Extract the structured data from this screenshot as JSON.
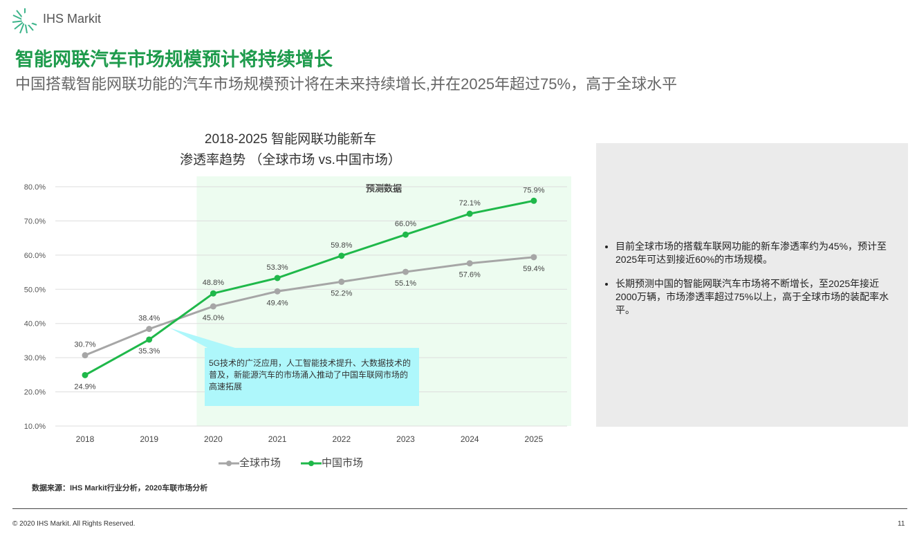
{
  "header": {
    "logo_text": "IHS Markit",
    "title": "智能网联汽车市场规模预计将持续增长",
    "subtitle": "中国搭载智能网联功能的汽车市场规模预计将在未来持续增长,并在2025年超过75%，高于全球水平"
  },
  "chart_data": {
    "type": "line",
    "title_line1": "2018-2025 智能网联功能新车",
    "title_line2": "渗透率趋势 （全球市场 vs.中国市场）",
    "categories": [
      "2018",
      "2019",
      "2020",
      "2021",
      "2022",
      "2023",
      "2024",
      "2025"
    ],
    "y_ticks": [
      "10.0%",
      "20.0%",
      "30.0%",
      "40.0%",
      "50.0%",
      "60.0%",
      "70.0%",
      "80.0%"
    ],
    "ylim": [
      10,
      80
    ],
    "grid": true,
    "legend_position": "bottom",
    "forecast_region": {
      "label": "预测数据",
      "from": "2020",
      "to": "2025",
      "color": "#edfcf0"
    },
    "series": [
      {
        "name": "全球市场",
        "color": "#a6a6a6",
        "values": [
          30.7,
          38.4,
          45.0,
          49.4,
          52.2,
          55.1,
          57.6,
          59.4
        ],
        "labels": [
          "30.7%",
          "38.4%",
          "45.0%",
          "49.4%",
          "52.2%",
          "55.1%",
          "57.6%",
          "59.4%"
        ]
      },
      {
        "name": "中国市场",
        "color": "#1fb84a",
        "values": [
          24.9,
          35.3,
          48.8,
          53.3,
          59.8,
          66.0,
          72.1,
          75.9
        ],
        "labels": [
          "24.9%",
          "35.3%",
          "48.8%",
          "53.3%",
          "59.8%",
          "66.0%",
          "72.1%",
          "75.9%"
        ]
      }
    ],
    "annotation": "5G技术的广泛应用，人工智能技术提升、大数据技术的普及，新能源汽车的市场涌入推动了中国车联网市场的高速拓展"
  },
  "panel": {
    "bullets": [
      "目前全球市场的搭载车联网功能的新车渗透率约为45%，预计至2025年可达到接近60%的市场规模。",
      "长期预测中国的智能网联汽车市场将不断增长，至2025年接近2000万辆，市场渗透率超过75%以上，高于全球市场的装配率水平。"
    ]
  },
  "footer": {
    "source": "数据来源：IHS Markit行业分析，2020车联市场分析",
    "copyright": "© 2020 IHS Markit. All Rights Reserved.",
    "page": "11"
  }
}
